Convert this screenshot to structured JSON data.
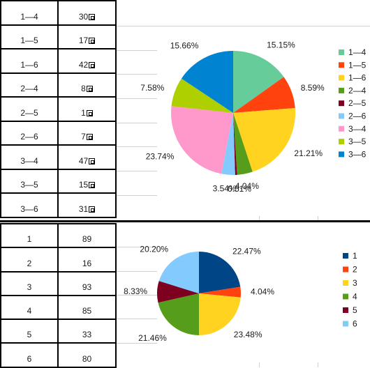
{
  "table_top": {
    "rows": [
      {
        "key": "1—4",
        "value": "30"
      },
      {
        "key": "1—5",
        "value": "17"
      },
      {
        "key": "1—6",
        "value": "42"
      },
      {
        "key": "2—4",
        "value": "8"
      },
      {
        "key": "2—5",
        "value": "1"
      },
      {
        "key": "2—6",
        "value": "7"
      },
      {
        "key": "3—4",
        "value": "47"
      },
      {
        "key": "3—5",
        "value": "15"
      },
      {
        "key": "3—6",
        "value": "31"
      }
    ]
  },
  "table_bottom": {
    "rows": [
      {
        "key": "1",
        "value": "89"
      },
      {
        "key": "2",
        "value": "16"
      },
      {
        "key": "3",
        "value": "93"
      },
      {
        "key": "4",
        "value": "85"
      },
      {
        "key": "5",
        "value": "33"
      },
      {
        "key": "6",
        "value": "80"
      }
    ]
  },
  "chart_data": [
    {
      "type": "pie",
      "title": "",
      "legend": "right",
      "slices": [
        {
          "name": "1—4",
          "value": 30,
          "label": "15.15%",
          "color": "#66cc99"
        },
        {
          "name": "1—5",
          "value": 17,
          "label": "8.59%",
          "color": "#ff420e"
        },
        {
          "name": "1—6",
          "value": 42,
          "label": "21.21%",
          "color": "#ffd320"
        },
        {
          "name": "2—4",
          "value": 8,
          "label": "4.04%",
          "color": "#579d1c"
        },
        {
          "name": "2—5",
          "value": 1,
          "label": "0.51%",
          "color": "#7e0021"
        },
        {
          "name": "2—6",
          "value": 7,
          "label": "3.54%",
          "color": "#83caff"
        },
        {
          "name": "3—4",
          "value": 47,
          "label": "23.74%",
          "color": "#ff99cc"
        },
        {
          "name": "3—5",
          "value": 15,
          "label": "7.58%",
          "color": "#aecf00"
        },
        {
          "name": "3—6",
          "value": 31,
          "label": "15.66%",
          "color": "#0084d1"
        }
      ]
    },
    {
      "type": "pie",
      "title": "",
      "legend": "right",
      "slices": [
        {
          "name": "1",
          "value": 89,
          "label": "22.47%",
          "color": "#004586"
        },
        {
          "name": "2",
          "value": 16,
          "label": "4.04%",
          "color": "#ff420e"
        },
        {
          "name": "3",
          "value": 93,
          "label": "23.48%",
          "color": "#ffd320"
        },
        {
          "name": "4",
          "value": 85,
          "label": "21.46%",
          "color": "#579d1c"
        },
        {
          "name": "5",
          "value": 33,
          "label": "8.33%",
          "color": "#7e0021"
        },
        {
          "name": "6",
          "value": 80,
          "label": "20.20%",
          "color": "#83caff"
        }
      ]
    }
  ]
}
